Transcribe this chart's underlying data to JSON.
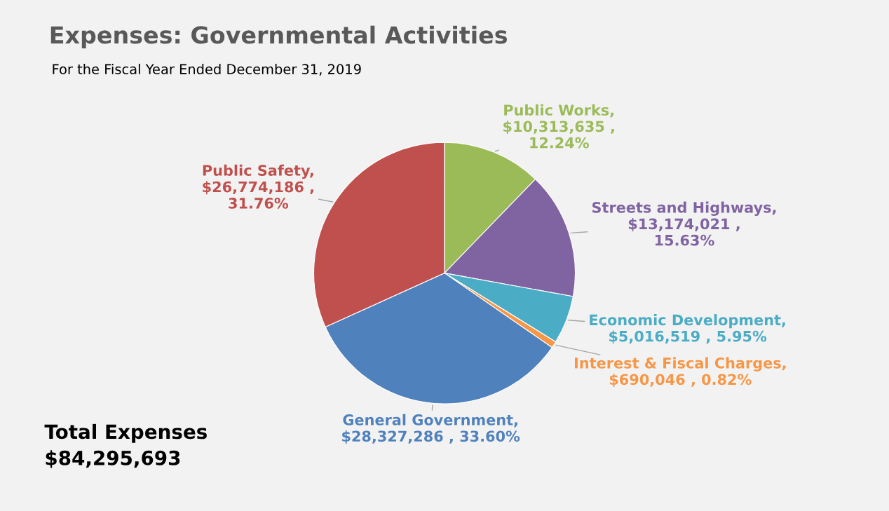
{
  "chart_data": {
    "type": "pie",
    "title": "Expenses: Governmental Activities",
    "subtitle": "For the Fiscal Year Ended December 31, 2019",
    "categories": [
      "Public Works",
      "Streets and Highways",
      "Economic Development",
      "Interest & Fiscal Charges",
      "General Government",
      "Public Safety"
    ],
    "values": [
      10313635,
      13174021,
      5016519,
      690046,
      28327286,
      26774186
    ],
    "value_labels": [
      ",\n$10,313,635 ,\n12.24%",
      ",\n$13,174,021 ,\n15.63%",
      ",\n$5,016,519 , 5.95%",
      ",\n$690,046 , 0.82%",
      ",\n$28,327,286 , 33.60%",
      ",\n$26,774,186 ,\n31.76%"
    ],
    "colors": [
      "#9bbb59",
      "#8064a2",
      "#4bacc6",
      "#f79646",
      "#4f81bd",
      "#c0504d"
    ],
    "annotations": [
      "Total Expenses\n$84,295,693"
    ]
  }
}
